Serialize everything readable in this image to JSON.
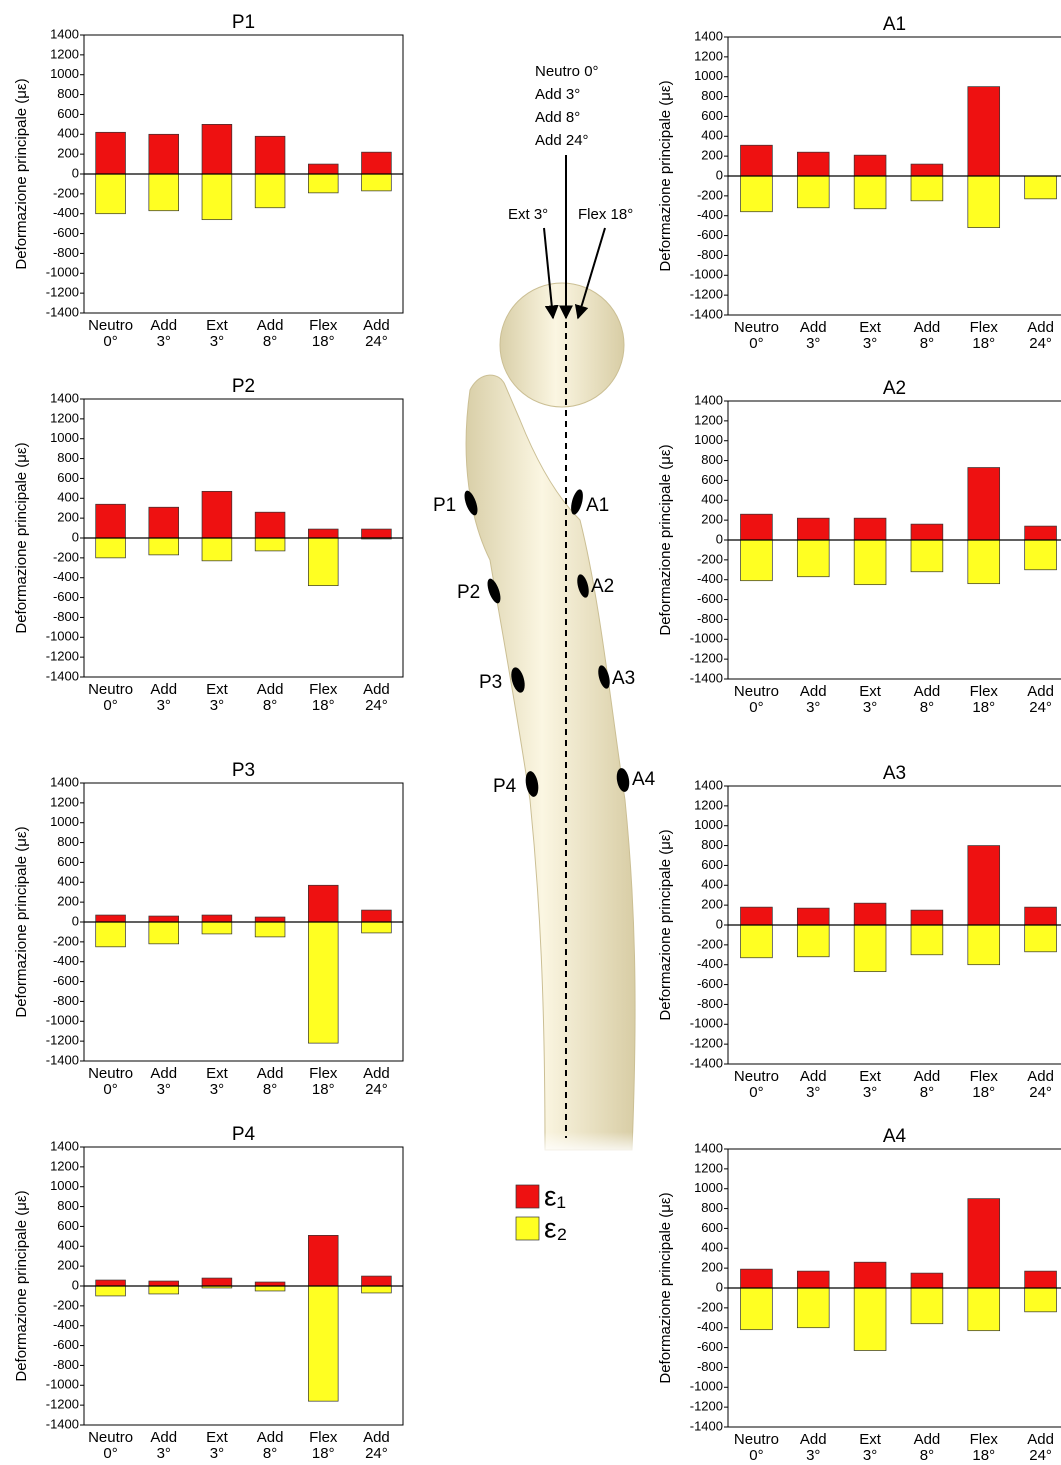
{
  "chart_data": [
    {
      "type": "bar",
      "title": "P1",
      "y_label": "Deformazione principale (με)",
      "categories": [
        [
          "Neutro",
          "0°"
        ],
        [
          "Add",
          "3°"
        ],
        [
          "Ext",
          "3°"
        ],
        [
          "Add",
          "8°"
        ],
        [
          "Flex",
          "18°"
        ],
        [
          "Add",
          "24°"
        ]
      ],
      "series": [
        {
          "name": "ε₁",
          "color": "#ee1111",
          "values": [
            420,
            400,
            500,
            380,
            100,
            220
          ]
        },
        {
          "name": "ε₂",
          "color": "#ffff22",
          "values": [
            -400,
            -370,
            -460,
            -340,
            -190,
            -170
          ]
        }
      ],
      "ylim": [
        -1400,
        1400
      ],
      "yticks": [
        -1400,
        -1200,
        -1000,
        -800,
        -600,
        -400,
        -200,
        0,
        200,
        400,
        600,
        800,
        1000,
        1200,
        1400
      ]
    },
    {
      "type": "bar",
      "title": "P2",
      "y_label": "Deformazione principale (με)",
      "categories": [
        [
          "Neutro",
          "0°"
        ],
        [
          "Add",
          "3°"
        ],
        [
          "Ext",
          "3°"
        ],
        [
          "Add",
          "8°"
        ],
        [
          "Flex",
          "18°"
        ],
        [
          "Add",
          "24°"
        ]
      ],
      "series": [
        {
          "name": "ε₁",
          "color": "#ee1111",
          "values": [
            340,
            310,
            470,
            260,
            90,
            90
          ]
        },
        {
          "name": "ε₂",
          "color": "#ffff22",
          "values": [
            -200,
            -170,
            -230,
            -130,
            -480,
            -10
          ]
        }
      ],
      "ylim": [
        -1400,
        1400
      ],
      "yticks": [
        -1400,
        -1200,
        -1000,
        -800,
        -600,
        -400,
        -200,
        0,
        200,
        400,
        600,
        800,
        1000,
        1200,
        1400
      ]
    },
    {
      "type": "bar",
      "title": "P3",
      "y_label": "Deformazione principale (με)",
      "categories": [
        [
          "Neutro",
          "0°"
        ],
        [
          "Add",
          "3°"
        ],
        [
          "Ext",
          "3°"
        ],
        [
          "Add",
          "8°"
        ],
        [
          "Flex",
          "18°"
        ],
        [
          "Add",
          "24°"
        ]
      ],
      "series": [
        {
          "name": "ε₁",
          "color": "#ee1111",
          "values": [
            70,
            60,
            70,
            50,
            370,
            120
          ]
        },
        {
          "name": "ε₂",
          "color": "#ffff22",
          "values": [
            -250,
            -220,
            -120,
            -150,
            -1220,
            -110
          ]
        }
      ],
      "ylim": [
        -1400,
        1400
      ],
      "yticks": [
        -1400,
        -1200,
        -1000,
        -800,
        -600,
        -400,
        -200,
        0,
        200,
        400,
        600,
        800,
        1000,
        1200,
        1400
      ]
    },
    {
      "type": "bar",
      "title": "P4",
      "y_label": "Deformazione principale (με)",
      "categories": [
        [
          "Neutro",
          "0°"
        ],
        [
          "Add",
          "3°"
        ],
        [
          "Ext",
          "3°"
        ],
        [
          "Add",
          "8°"
        ],
        [
          "Flex",
          "18°"
        ],
        [
          "Add",
          "24°"
        ]
      ],
      "series": [
        {
          "name": "ε₁",
          "color": "#ee1111",
          "values": [
            60,
            50,
            80,
            40,
            510,
            100
          ]
        },
        {
          "name": "ε₂",
          "color": "#ffff22",
          "values": [
            -100,
            -80,
            -20,
            -50,
            -1160,
            -70
          ]
        }
      ],
      "ylim": [
        -1400,
        1400
      ],
      "yticks": [
        -1400,
        -1200,
        -1000,
        -800,
        -600,
        -400,
        -200,
        0,
        200,
        400,
        600,
        800,
        1000,
        1200,
        1400
      ]
    },
    {
      "type": "bar",
      "title": "A1",
      "y_label": "Deformazione principale (με)",
      "categories": [
        [
          "Neutro",
          "0°"
        ],
        [
          "Add",
          "3°"
        ],
        [
          "Ext",
          "3°"
        ],
        [
          "Add",
          "8°"
        ],
        [
          "Flex",
          "18°"
        ],
        [
          "Add",
          "24°"
        ]
      ],
      "series": [
        {
          "name": "ε₁",
          "color": "#ee1111",
          "values": [
            310,
            240,
            210,
            120,
            900,
            0
          ]
        },
        {
          "name": "ε₂",
          "color": "#ffff22",
          "values": [
            -360,
            -320,
            -330,
            -250,
            -520,
            -230
          ]
        }
      ],
      "ylim": [
        -1400,
        1400
      ],
      "yticks": [
        -1400,
        -1200,
        -1000,
        -800,
        -600,
        -400,
        -200,
        0,
        200,
        400,
        600,
        800,
        1000,
        1200,
        1400
      ]
    },
    {
      "type": "bar",
      "title": "A2",
      "y_label": "Deformazione principale (με)",
      "categories": [
        [
          "Neutro",
          "0°"
        ],
        [
          "Add",
          "3°"
        ],
        [
          "Ext",
          "3°"
        ],
        [
          "Add",
          "8°"
        ],
        [
          "Flex",
          "18°"
        ],
        [
          "Add",
          "24°"
        ]
      ],
      "series": [
        {
          "name": "ε₁",
          "color": "#ee1111",
          "values": [
            260,
            220,
            220,
            160,
            730,
            140
          ]
        },
        {
          "name": "ε₂",
          "color": "#ffff22",
          "values": [
            -410,
            -370,
            -450,
            -320,
            -440,
            -300
          ]
        }
      ],
      "ylim": [
        -1400,
        1400
      ],
      "yticks": [
        -1400,
        -1200,
        -1000,
        -800,
        -600,
        -400,
        -200,
        0,
        200,
        400,
        600,
        800,
        1000,
        1200,
        1400
      ]
    },
    {
      "type": "bar",
      "title": "A3",
      "y_label": "Deformazione principale (με)",
      "categories": [
        [
          "Neutro",
          "0°"
        ],
        [
          "Add",
          "3°"
        ],
        [
          "Ext",
          "3°"
        ],
        [
          "Add",
          "8°"
        ],
        [
          "Flex",
          "18°"
        ],
        [
          "Add",
          "24°"
        ]
      ],
      "series": [
        {
          "name": "ε₁",
          "color": "#ee1111",
          "values": [
            180,
            170,
            220,
            150,
            800,
            180
          ]
        },
        {
          "name": "ε₂",
          "color": "#ffff22",
          "values": [
            -330,
            -320,
            -470,
            -300,
            -400,
            -270
          ]
        }
      ],
      "ylim": [
        -1400,
        1400
      ],
      "yticks": [
        -1400,
        -1200,
        -1000,
        -800,
        -600,
        -400,
        -200,
        0,
        200,
        400,
        600,
        800,
        1000,
        1200,
        1400
      ]
    },
    {
      "type": "bar",
      "title": "A4",
      "y_label": "Deformazione principale (με)",
      "categories": [
        [
          "Neutro",
          "0°"
        ],
        [
          "Add",
          "3°"
        ],
        [
          "Ext",
          "3°"
        ],
        [
          "Add",
          "8°"
        ],
        [
          "Flex",
          "18°"
        ],
        [
          "Add",
          "24°"
        ]
      ],
      "series": [
        {
          "name": "ε₁",
          "color": "#ee1111",
          "values": [
            190,
            170,
            260,
            150,
            900,
            170
          ]
        },
        {
          "name": "ε₂",
          "color": "#ffff22",
          "values": [
            -420,
            -400,
            -630,
            -360,
            -430,
            -240
          ]
        }
      ],
      "ylim": [
        -1400,
        1400
      ],
      "yticks": [
        -1400,
        -1200,
        -1000,
        -800,
        -600,
        -400,
        -200,
        0,
        200,
        400,
        600,
        800,
        1000,
        1200,
        1400
      ]
    }
  ],
  "diagram": {
    "angles": [
      "Neutro 0°",
      "Add 3°",
      "Add 8°",
      "Add 24°"
    ],
    "ext": "Ext 3°",
    "flex": "Flex 18°",
    "gauges": [
      "P1",
      "P2",
      "P3",
      "P4",
      "A1",
      "A2",
      "A3",
      "A4"
    ]
  }
}
